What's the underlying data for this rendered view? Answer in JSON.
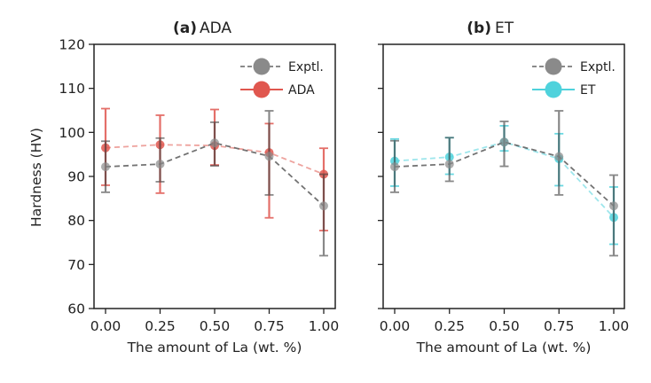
{
  "chart_data": [
    {
      "type": "line",
      "panel": "a",
      "title_prefix": "(a)",
      "title_main": "ADA",
      "xlabel": "The amount of La (wt. %)",
      "ylabel": "Hardness (HV)",
      "ylim": [
        60,
        120
      ],
      "xlim": [
        -0.07,
        1.07
      ],
      "x": [
        0.0,
        0.25,
        0.5,
        0.75,
        1.0
      ],
      "xticks": [
        "0.00",
        "0.25",
        "0.50",
        "0.75",
        "1.00"
      ],
      "yticks": [
        "60",
        "70",
        "80",
        "90",
        "100",
        "110",
        "120"
      ],
      "ytick_values": [
        60,
        70,
        80,
        90,
        100,
        110,
        120
      ],
      "legend_position": "top-right",
      "grid": false,
      "series": [
        {
          "name": "Exptl.",
          "color": "#555555",
          "marker_color": "#8a8a8a",
          "linestyle": "dashed",
          "values": [
            92.2,
            92.8,
            97.6,
            94.6,
            83.3
          ],
          "err_low": [
            86.4,
            88.8,
            92.4,
            85.8,
            72.0
          ],
          "err_high": [
            98.0,
            98.7,
            102.3,
            104.9,
            90.5
          ]
        },
        {
          "name": "ADA",
          "color": "#e0574f",
          "marker_color": "#e0574f",
          "linestyle": "dashed",
          "legend_linestyle": "solid",
          "values": [
            96.5,
            97.2,
            97.0,
            95.4,
            90.5
          ],
          "err_low": [
            88.0,
            86.2,
            92.6,
            80.6,
            77.7
          ],
          "err_high": [
            105.4,
            103.9,
            105.2,
            102.0,
            96.4
          ]
        }
      ]
    },
    {
      "type": "line",
      "panel": "b",
      "title_prefix": "(b)",
      "title_main": "ET",
      "xlabel": "The amount of La (wt. %)",
      "ylabel": "",
      "ylim": [
        60,
        120
      ],
      "xlim": [
        -0.07,
        1.07
      ],
      "x": [
        0.0,
        0.25,
        0.5,
        0.75,
        1.0
      ],
      "xticks": [
        "0.00",
        "0.25",
        "0.50",
        "0.75",
        "1.00"
      ],
      "yticks": [],
      "ytick_values": [
        60,
        70,
        80,
        90,
        100,
        110,
        120
      ],
      "legend_position": "top-right",
      "grid": false,
      "series": [
        {
          "name": "Exptl.",
          "color": "#555555",
          "marker_color": "#8a8a8a",
          "linestyle": "dashed",
          "values": [
            92.2,
            92.8,
            97.8,
            94.5,
            83.3
          ],
          "err_low": [
            86.4,
            88.9,
            92.3,
            85.8,
            72.0
          ],
          "err_high": [
            98.1,
            98.8,
            102.5,
            104.9,
            90.3
          ]
        },
        {
          "name": "ET",
          "color": "#4fd2dc",
          "marker_color": "#4fd2dc",
          "linestyle": "dashed",
          "legend_linestyle": "solid",
          "values": [
            93.5,
            94.4,
            97.8,
            94.0,
            80.7
          ],
          "err_low": [
            87.8,
            90.5,
            95.8,
            87.9,
            74.6
          ],
          "err_high": [
            98.5,
            98.8,
            101.5,
            99.7,
            87.6
          ]
        }
      ]
    }
  ]
}
